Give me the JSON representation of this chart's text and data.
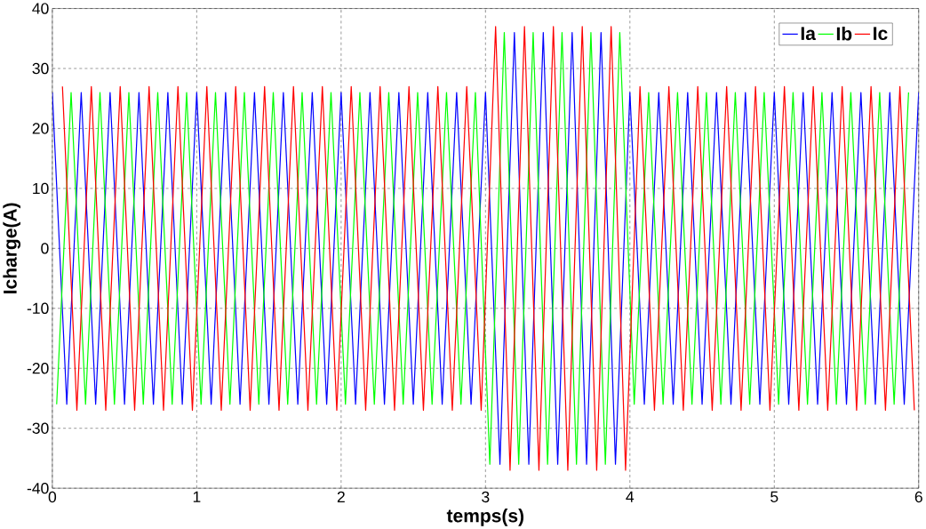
{
  "chart_data": {
    "type": "line",
    "xlabel": "temps(s)",
    "ylabel": "Icharge(A)",
    "xlim": [
      0,
      6
    ],
    "ylim": [
      -40,
      40
    ],
    "xticks": [
      0,
      1,
      2,
      3,
      4,
      5,
      6
    ],
    "yticks": [
      -40,
      -30,
      -20,
      -10,
      0,
      10,
      20,
      30,
      40
    ],
    "grid": true,
    "legend": "top right",
    "marker": "none",
    "line_style": "solid",
    "series": [
      {
        "name": "Ia",
        "color": "#0000ff",
        "x": [
          0,
          0.1,
          0.2,
          0.3,
          0.4,
          0.5,
          0.6,
          0.7,
          0.8,
          0.9,
          1,
          1.1,
          1.2,
          1.3,
          1.4,
          1.5,
          1.6,
          1.7,
          1.8,
          1.9,
          2,
          2.1,
          2.2,
          2.3,
          2.4,
          2.5,
          2.6,
          2.7,
          2.8,
          2.9,
          3,
          3.1,
          3.2,
          3.3,
          3.4,
          3.5,
          3.6,
          3.7,
          3.8,
          3.9,
          4,
          4.1,
          4.2,
          4.3,
          4.4,
          4.5,
          4.6,
          4.7,
          4.8,
          4.9,
          5,
          5.1,
          5.2,
          5.3,
          5.4,
          5.5,
          5.6,
          5.7,
          5.8,
          5.9,
          6
        ],
        "values": [
          26,
          -26,
          26,
          -26,
          26,
          -26,
          26,
          -26,
          26,
          -26,
          26,
          -26,
          26,
          -26,
          26,
          -26,
          26,
          -26,
          26,
          -26,
          26,
          -26,
          26,
          -26,
          26,
          -26,
          26,
          -26,
          26,
          -26,
          26,
          -36,
          36,
          -36,
          36,
          -36,
          36,
          -36,
          36,
          -36,
          26,
          -26,
          26,
          -26,
          26,
          -26,
          26,
          -26,
          26,
          -26,
          26,
          -26,
          26,
          -26,
          26,
          -26,
          26,
          -26,
          26,
          -26,
          26
        ]
      },
      {
        "name": "Ib",
        "color": "#00ff00",
        "x": [
          0.03,
          0.13,
          0.23,
          0.33,
          0.43,
          0.53,
          0.63,
          0.73,
          0.83,
          0.93,
          1.03,
          1.13,
          1.23,
          1.33,
          1.43,
          1.53,
          1.63,
          1.73,
          1.83,
          1.93,
          2.03,
          2.13,
          2.23,
          2.33,
          2.43,
          2.53,
          2.63,
          2.73,
          2.83,
          2.93,
          3.03,
          3.13,
          3.23,
          3.33,
          3.43,
          3.53,
          3.63,
          3.73,
          3.83,
          3.93,
          4.03,
          4.13,
          4.23,
          4.33,
          4.43,
          4.53,
          4.63,
          4.73,
          4.83,
          4.93,
          5.03,
          5.13,
          5.23,
          5.33,
          5.43,
          5.53,
          5.63,
          5.73,
          5.83,
          5.93
        ],
        "values": [
          -26,
          26,
          -26,
          26,
          -26,
          26,
          -26,
          26,
          -26,
          26,
          -26,
          26,
          -26,
          26,
          -26,
          26,
          -26,
          26,
          -26,
          26,
          -26,
          26,
          -26,
          26,
          -26,
          26,
          -26,
          26,
          -26,
          26,
          -36,
          36,
          -36,
          36,
          -36,
          36,
          -36,
          36,
          -36,
          36,
          -26,
          26,
          -26,
          26,
          -26,
          26,
          -26,
          26,
          -26,
          26,
          -26,
          26,
          -26,
          26,
          -26,
          26,
          -26,
          26,
          -26,
          26
        ]
      },
      {
        "name": "Ic",
        "color": "#ff0000",
        "x": [
          0.07,
          0.17,
          0.27,
          0.37,
          0.47,
          0.57,
          0.67,
          0.77,
          0.87,
          0.97,
          1.07,
          1.17,
          1.27,
          1.37,
          1.47,
          1.57,
          1.67,
          1.77,
          1.87,
          1.97,
          2.07,
          2.17,
          2.27,
          2.37,
          2.47,
          2.57,
          2.67,
          2.77,
          2.87,
          2.97,
          3.07,
          3.17,
          3.27,
          3.37,
          3.47,
          3.57,
          3.67,
          3.77,
          3.87,
          3.97,
          4.07,
          4.17,
          4.27,
          4.37,
          4.47,
          4.57,
          4.67,
          4.77,
          4.87,
          4.97,
          5.07,
          5.17,
          5.27,
          5.37,
          5.47,
          5.57,
          5.67,
          5.77,
          5.87,
          5.97
        ],
        "values": [
          27,
          -27,
          27,
          -27,
          27,
          -27,
          27,
          -27,
          27,
          -27,
          27,
          -27,
          27,
          -27,
          27,
          -27,
          27,
          -27,
          27,
          -27,
          27,
          -27,
          27,
          -27,
          27,
          -27,
          27,
          -27,
          27,
          -27,
          37,
          -37,
          37,
          -37,
          37,
          -37,
          37,
          -37,
          37,
          -37,
          27,
          -27,
          27,
          -27,
          27,
          -27,
          27,
          -27,
          27,
          -27,
          27,
          -27,
          27,
          -27,
          27,
          -27,
          27,
          -27,
          27,
          -27
        ]
      }
    ]
  }
}
